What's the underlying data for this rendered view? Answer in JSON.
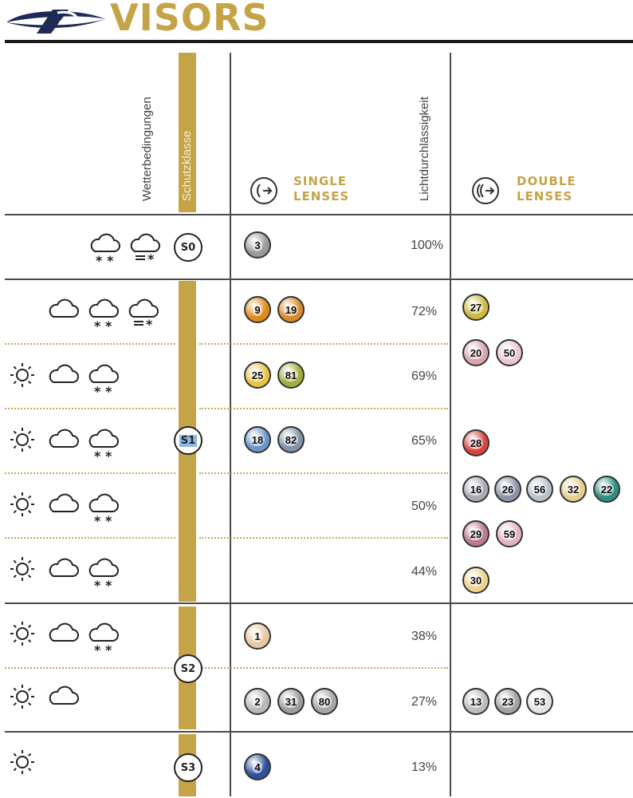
{
  "header": {
    "title": "VISORS",
    "logo_icon": "brand-logo-icon"
  },
  "columns": {
    "weather_label": "Wetterbedingungen",
    "class_label": "Schutzklasse",
    "single_label_1": "SINGLE",
    "single_label_2": "LENSES",
    "transmission_label": "Lichtdurchlässigkeit",
    "double_label_1": "DOUBLE",
    "double_label_2": "LENSES"
  },
  "classes": [
    "S0",
    "S1",
    "S2",
    "S3"
  ],
  "rows": [
    {
      "transmission": "100%",
      "single": [
        "3"
      ]
    },
    {
      "transmission": "72%",
      "single": [
        "9",
        "19"
      ]
    },
    {
      "transmission": "69%",
      "single": [
        "25",
        "81"
      ]
    },
    {
      "transmission": "65%",
      "single": [
        "18",
        "82"
      ]
    },
    {
      "transmission": "50%",
      "single": []
    },
    {
      "transmission": "44%",
      "single": []
    },
    {
      "transmission": "38%",
      "single": [
        "1"
      ]
    },
    {
      "transmission": "27%",
      "single": [
        "2",
        "31",
        "80"
      ]
    },
    {
      "transmission": "13%",
      "single": [
        "4"
      ]
    }
  ],
  "double_groups": [
    [
      "27"
    ],
    [
      "20",
      "50"
    ],
    [
      "28"
    ],
    [
      "16",
      "26",
      "56",
      "32",
      "22"
    ],
    [
      "29",
      "59"
    ],
    [
      "30"
    ],
    [
      "13",
      "23",
      "53"
    ]
  ],
  "icons": {
    "sun": "sun-icon",
    "cloud": "cloud-icon",
    "snow": "snow-cloud-icon",
    "fog": "fog-snow-cloud-icon"
  },
  "lens_colors": {
    "3": "#9a9a9a",
    "9": "#e08a1c",
    "19": "#d9892a",
    "25": "#e8c446",
    "81": "#9fae3c",
    "18": "#6a97c8",
    "82": "#7f93aa",
    "1": "#e9c7a0",
    "2": "#b8b8b8",
    "31": "#9d9d9d",
    "80": "#a6a6a6",
    "4": "#2e4f9c",
    "27": "#cdb93e",
    "20": "#d7a6ad",
    "50": "#ecc6cf",
    "28": "#d8443e",
    "16": "#a9a9b3",
    "26": "#8a95a5",
    "56": "#b9c1c9",
    "32": "#e6cf8e",
    "22": "#2f8f80",
    "29": "#b97a8f",
    "59": "#e2b4c1",
    "30": "#ecd48c",
    "13": "#bdbdbd",
    "23": "#a3a3a3",
    "53": "#e4e4e4"
  }
}
